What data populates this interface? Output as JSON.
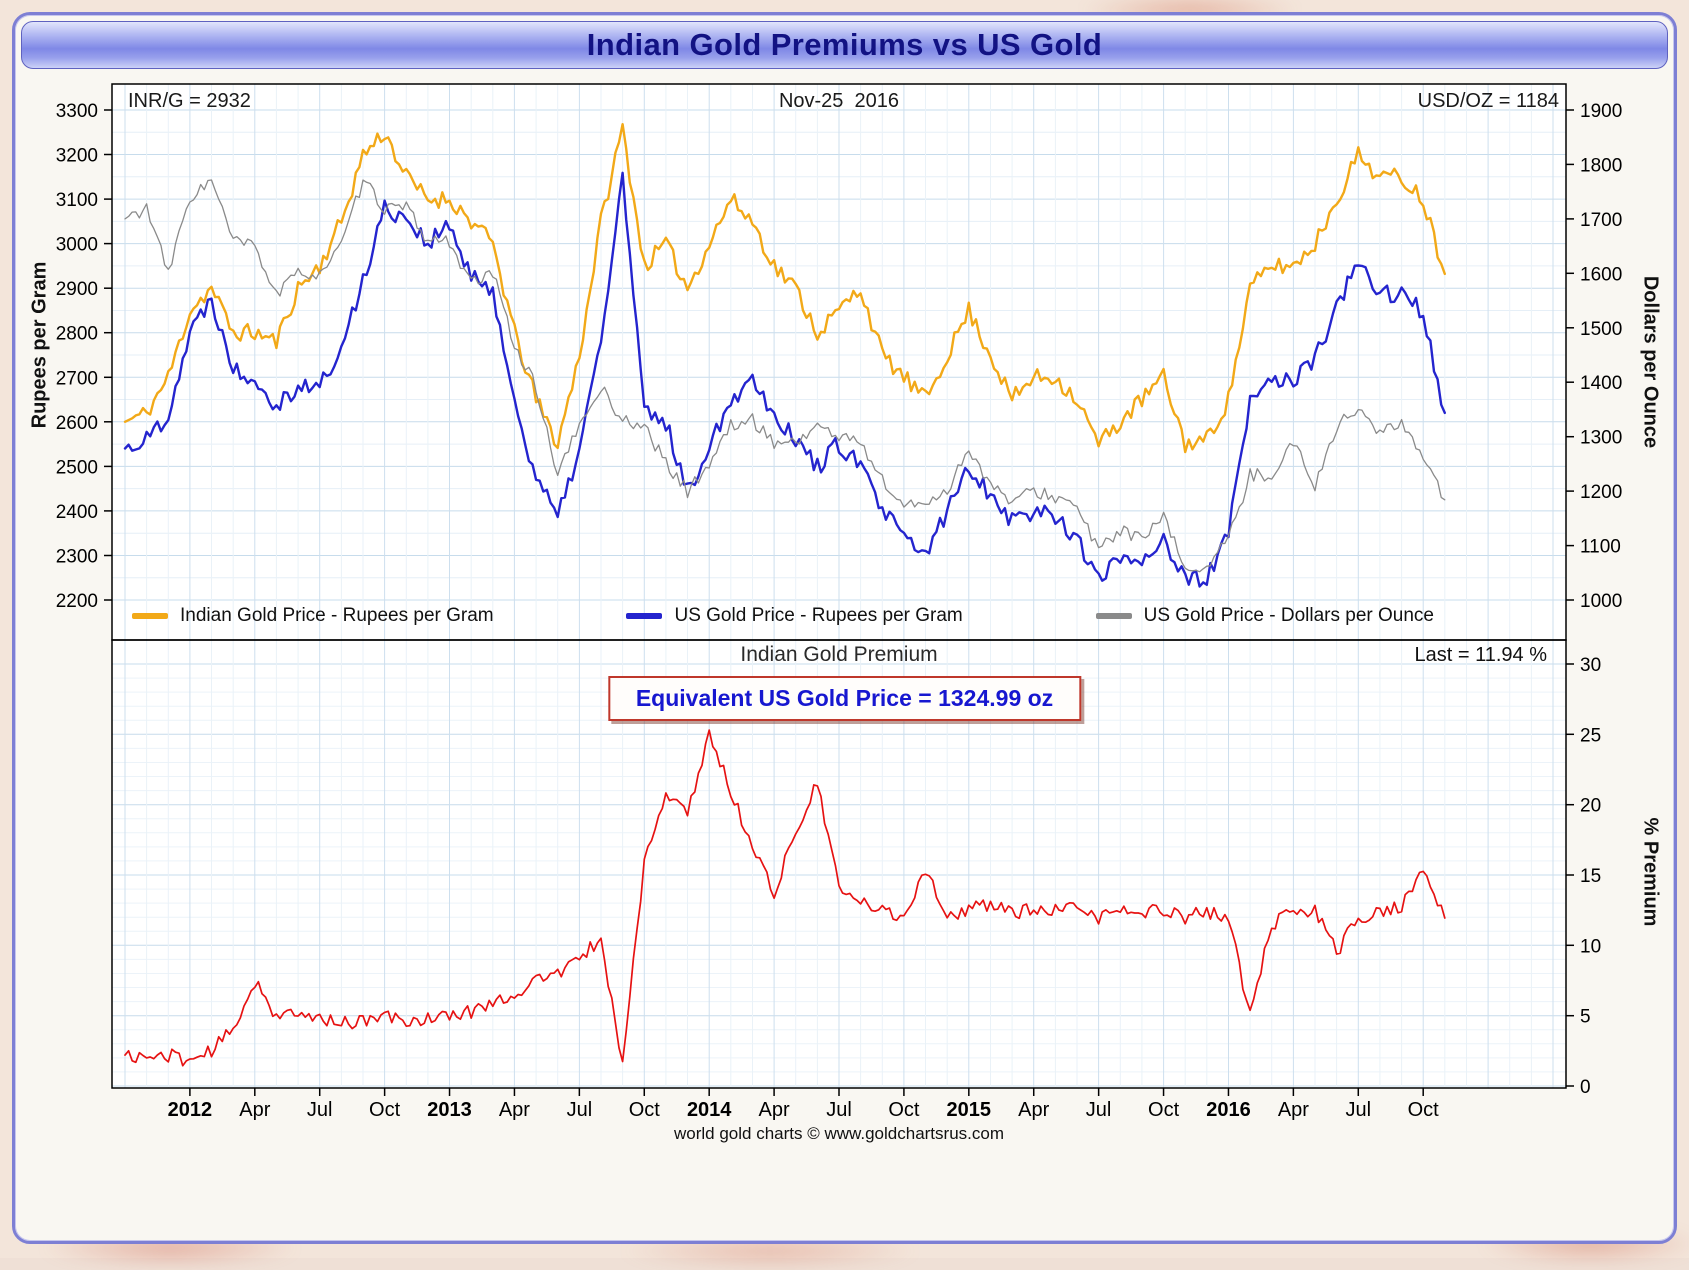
{
  "title": "Indian Gold Premiums vs US Gold",
  "footer": "world gold charts © www.goldchartsrus.com",
  "chart_data": {
    "type": "line",
    "title": "Indian Gold Premiums vs US Gold",
    "x_domain": [
      2011.7,
      2017.3
    ],
    "x_start": 2011.75,
    "x_step": 0.0833333,
    "x_ticks": [
      {
        "label": "2012",
        "t": 2012.0,
        "bold": true
      },
      {
        "label": "Apr",
        "t": 2012.25,
        "bold": false
      },
      {
        "label": "Jul",
        "t": 2012.5,
        "bold": false
      },
      {
        "label": "Oct",
        "t": 2012.75,
        "bold": false
      },
      {
        "label": "2013",
        "t": 2013.0,
        "bold": true
      },
      {
        "label": "Apr",
        "t": 2013.25,
        "bold": false
      },
      {
        "label": "Jul",
        "t": 2013.5,
        "bold": false
      },
      {
        "label": "Oct",
        "t": 2013.75,
        "bold": false
      },
      {
        "label": "2014",
        "t": 2014.0,
        "bold": true
      },
      {
        "label": "Apr",
        "t": 2014.25,
        "bold": false
      },
      {
        "label": "Jul",
        "t": 2014.5,
        "bold": false
      },
      {
        "label": "Oct",
        "t": 2014.75,
        "bold": false
      },
      {
        "label": "2015",
        "t": 2015.0,
        "bold": true
      },
      {
        "label": "Apr",
        "t": 2015.25,
        "bold": false
      },
      {
        "label": "Jul",
        "t": 2015.5,
        "bold": false
      },
      {
        "label": "Oct",
        "t": 2015.75,
        "bold": false
      },
      {
        "label": "2016",
        "t": 2016.0,
        "bold": true
      },
      {
        "label": "Apr",
        "t": 2016.25,
        "bold": false
      },
      {
        "label": "Jul",
        "t": 2016.5,
        "bold": false
      },
      {
        "label": "Oct",
        "t": 2016.75,
        "bold": false
      }
    ],
    "top_panel": {
      "left_axis": {
        "title": "Rupees per Gram",
        "range": [
          2200,
          3300
        ],
        "ticks": [
          2200,
          2300,
          2400,
          2500,
          2600,
          2700,
          2800,
          2900,
          3000,
          3100,
          3200,
          3300
        ]
      },
      "right_axis": {
        "title": "Dollars per Ounce",
        "range": [
          1000,
          1900
        ],
        "ticks": [
          1000,
          1100,
          1200,
          1300,
          1400,
          1500,
          1600,
          1700,
          1800,
          1900
        ]
      },
      "annotations": {
        "inr": "INR/G = 2932",
        "date": "Nov-25  2016",
        "usd": "USD/OZ = 1184"
      },
      "series": [
        {
          "name": "Indian Gold Price - Rupees per Gram",
          "color": "#F2A918",
          "axis": "left",
          "width": 2.4,
          "noise": 20,
          "seed": 11,
          "values": [
            2600,
            2620,
            2700,
            2850,
            2900,
            2800,
            2800,
            2780,
            2900,
            2950,
            3050,
            3200,
            3250,
            3150,
            3100,
            3100,
            3050,
            3000,
            2800,
            2650,
            2550,
            2750,
            3050,
            3260,
            2950,
            3000,
            2900,
            3000,
            3100,
            3050,
            2950,
            2900,
            2800,
            2850,
            2900,
            2750,
            2700,
            2650,
            2750,
            2850,
            2750,
            2650,
            2700,
            2700,
            2650,
            2550,
            2600,
            2650,
            2700,
            2550,
            2560,
            2650,
            2900,
            2950,
            2950,
            3000,
            3100,
            3200,
            3150,
            3150,
            3100,
            2932
          ]
        },
        {
          "name": "US Gold Price - Rupees per Gram",
          "color": "#2424CE",
          "axis": "left",
          "width": 2.4,
          "noise": 22,
          "seed": 22,
          "values": [
            2540,
            2560,
            2620,
            2800,
            2880,
            2720,
            2700,
            2640,
            2680,
            2680,
            2760,
            2920,
            3080,
            3060,
            3000,
            3040,
            2920,
            2900,
            2640,
            2480,
            2380,
            2540,
            2780,
            3150,
            2620,
            2600,
            2440,
            2550,
            2650,
            2700,
            2620,
            2560,
            2500,
            2550,
            2500,
            2400,
            2340,
            2300,
            2400,
            2500,
            2440,
            2380,
            2400,
            2390,
            2340,
            2240,
            2300,
            2290,
            2340,
            2240,
            2250,
            2350,
            2640,
            2700,
            2690,
            2740,
            2860,
            2950,
            2890,
            2890,
            2840,
            2620
          ]
        },
        {
          "name": "US Gold Price - Dollars per Ounce",
          "color": "#8A8A8A",
          "axis": "right",
          "width": 1.3,
          "noise": 12,
          "seed": 33,
          "values": [
            1700,
            1720,
            1600,
            1740,
            1770,
            1660,
            1650,
            1560,
            1600,
            1600,
            1650,
            1770,
            1720,
            1720,
            1660,
            1660,
            1580,
            1600,
            1470,
            1390,
            1230,
            1320,
            1390,
            1330,
            1320,
            1250,
            1200,
            1250,
            1320,
            1330,
            1290,
            1290,
            1320,
            1300,
            1290,
            1220,
            1170,
            1180,
            1200,
            1280,
            1210,
            1180,
            1200,
            1190,
            1170,
            1090,
            1130,
            1110,
            1150,
            1060,
            1060,
            1110,
            1230,
            1230,
            1290,
            1210,
            1320,
            1350,
            1310,
            1320,
            1270,
            1184
          ]
        }
      ]
    },
    "bottom_panel": {
      "title": "Indian Gold Premium",
      "last_label": "Last = 11.94 %",
      "last_value": 11.94,
      "equivalent_label": "Equivalent US Gold Price = 1324.99 oz",
      "equivalent_value": 1324.99,
      "right_axis": {
        "title": "% Premium",
        "range": [
          0,
          30
        ],
        "ticks": [
          0,
          5,
          10,
          15,
          20,
          25,
          30
        ]
      },
      "series": [
        {
          "name": "Indian Gold Premium",
          "color": "#E61212",
          "width": 1.7,
          "noise": 0.5,
          "seed": 44,
          "values": [
            2.2,
            2.0,
            2.2,
            1.8,
            2.5,
            4.0,
            7.5,
            5.0,
            5.0,
            4.8,
            4.6,
            4.5,
            5.0,
            4.6,
            4.8,
            5.0,
            5.3,
            6.0,
            6.5,
            7.5,
            8.0,
            9.0,
            10.5,
            1.5,
            16.0,
            20.5,
            19.5,
            25.0,
            21.0,
            17.0,
            13.8,
            18.0,
            21.5,
            14.0,
            13.0,
            12.5,
            12.0,
            15.5,
            12.0,
            12.5,
            13.0,
            12.3,
            12.5,
            12.4,
            12.6,
            12.0,
            12.5,
            12.2,
            12.6,
            12.0,
            12.4,
            12.0,
            5.0,
            11.5,
            12.3,
            12.5,
            9.5,
            12.0,
            12.3,
            12.8,
            15.3,
            11.94
          ]
        }
      ]
    }
  }
}
